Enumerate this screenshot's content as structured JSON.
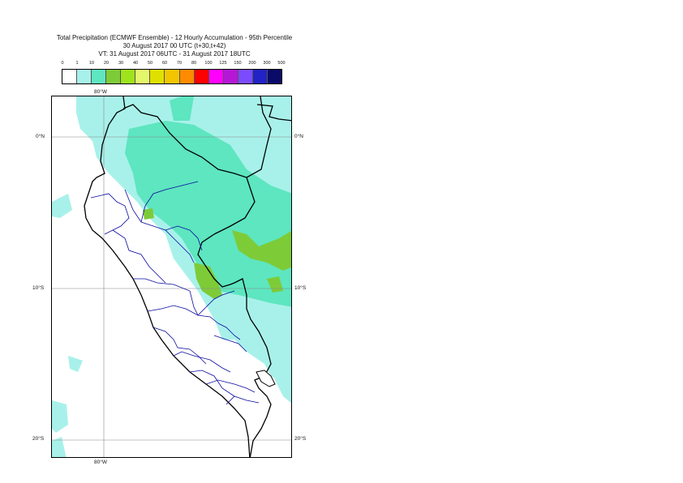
{
  "title": {
    "line1": "Total Precipitation (ECMWF Ensemble) - 12 Hourly Accumulation - 95th Percentile",
    "line2": "30 August 2017 00 UTC (t+30,t+42)",
    "line3": "VT: 31 August 2017 06UTC - 31 August 2017 18UTC"
  },
  "legend": {
    "ticks": [
      "0",
      "1",
      "10",
      "20",
      "30",
      "40",
      "50",
      "60",
      "70",
      "80",
      "100",
      "125",
      "150",
      "200",
      "300",
      "500"
    ],
    "colors": [
      "#ffffff",
      "#a8f1ea",
      "#5de6c0",
      "#7ecb38",
      "#9ee31b",
      "#e4f76a",
      "#e0e000",
      "#f3c500",
      "#ff8b00",
      "#ff0000",
      "#ff00ff",
      "#b418d6",
      "#7b4bff",
      "#2222c6",
      "#0a0a68"
    ]
  },
  "axes": {
    "lon_top": "80°W",
    "lon_bottom": "80°W",
    "lat_0_left": "0°N",
    "lat_0_right": "0°N",
    "lat_10_left": "10°S",
    "lat_10_right": "10°S",
    "lat_20_left": "20°S",
    "lat_20_right": "20°S"
  }
}
